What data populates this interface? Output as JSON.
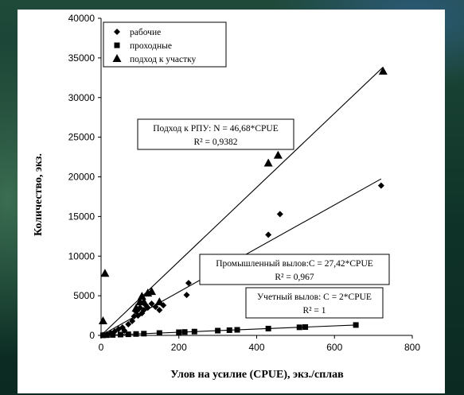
{
  "chart_data": {
    "type": "scatter",
    "xlabel": "Улов на усилие (CPUE), экз./сплав",
    "ylabel": "Количество, экз.",
    "xlim": [
      0,
      800
    ],
    "ylim": [
      0,
      40000
    ],
    "x_ticks": [
      0,
      200,
      400,
      600,
      800
    ],
    "y_ticks": [
      0,
      5000,
      10000,
      15000,
      20000,
      25000,
      30000,
      35000,
      40000
    ],
    "legend_position": "top-left",
    "series": [
      {
        "name": "рабочие",
        "marker": "diamond",
        "points": [
          [
            5,
            50
          ],
          [
            15,
            150
          ],
          [
            25,
            300
          ],
          [
            35,
            500
          ],
          [
            45,
            800
          ],
          [
            55,
            1000
          ],
          [
            60,
            600
          ],
          [
            70,
            1400
          ],
          [
            80,
            1800
          ],
          [
            85,
            2400
          ],
          [
            90,
            3000
          ],
          [
            95,
            2500
          ],
          [
            100,
            3500
          ],
          [
            105,
            2800
          ],
          [
            110,
            3200
          ],
          [
            115,
            3800
          ],
          [
            120,
            3500
          ],
          [
            130,
            4000
          ],
          [
            140,
            3600
          ],
          [
            150,
            3200
          ],
          [
            160,
            3800
          ],
          [
            220,
            5100
          ],
          [
            225,
            6600
          ],
          [
            430,
            12700
          ],
          [
            460,
            15300
          ],
          [
            720,
            18900
          ]
        ],
        "trend": {
          "slope": 27.42,
          "x_range": [
            0,
            720
          ]
        }
      },
      {
        "name": "проходные",
        "marker": "square",
        "points": [
          [
            5,
            10
          ],
          [
            15,
            30
          ],
          [
            30,
            60
          ],
          [
            50,
            100
          ],
          [
            70,
            140
          ],
          [
            90,
            180
          ],
          [
            110,
            220
          ],
          [
            150,
            300
          ],
          [
            200,
            400
          ],
          [
            215,
            430
          ],
          [
            240,
            480
          ],
          [
            300,
            600
          ],
          [
            330,
            660
          ],
          [
            350,
            700
          ],
          [
            430,
            860
          ],
          [
            510,
            1020
          ],
          [
            525,
            1050
          ],
          [
            655,
            1310
          ]
        ],
        "trend": {
          "slope": 2,
          "x_range": [
            0,
            655
          ]
        }
      },
      {
        "name": "подход к участку",
        "marker": "triangle",
        "points": [
          [
            5,
            1800
          ],
          [
            10,
            7800
          ],
          [
            90,
            3400
          ],
          [
            100,
            4200
          ],
          [
            105,
            4900
          ],
          [
            110,
            4200
          ],
          [
            120,
            5300
          ],
          [
            130,
            5500
          ],
          [
            150,
            4200
          ],
          [
            430,
            21700
          ],
          [
            455,
            22700
          ],
          [
            725,
            33300
          ]
        ],
        "trend": {
          "slope": 46.68,
          "x_range": [
            0,
            725
          ]
        }
      }
    ],
    "annotations": [
      {
        "id": "approach",
        "line1": "Подход к РПУ:  N = 46,68*CPUE",
        "line2": "R² = 0,9382"
      },
      {
        "id": "industrial",
        "line1": "Промышленный вылов:C = 27,42*CPUE",
        "line2": "R² = 0,967"
      },
      {
        "id": "recorded",
        "line1": "Учетный вылов: C = 2*CPUE",
        "line2": "R² = 1"
      }
    ]
  }
}
